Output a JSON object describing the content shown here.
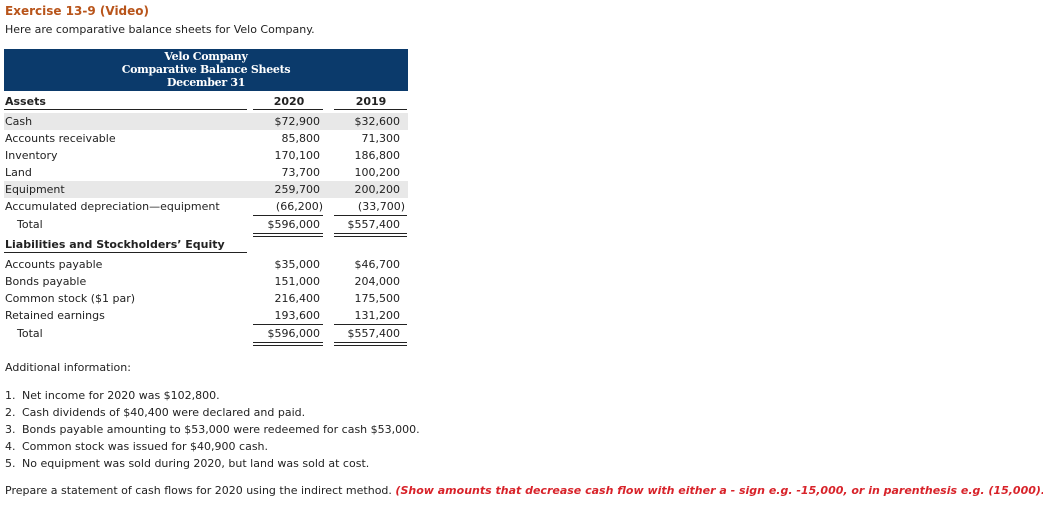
{
  "exercise_title": "Exercise 13-9 (Video)",
  "intro": "Here are comparative balance sheets for Velo Company.",
  "balance_sheet": {
    "header": {
      "company": "Velo Company",
      "statement": "Comparative Balance Sheets",
      "date": "December 31"
    },
    "assets_heading": "Assets",
    "years": [
      "2020",
      "2019"
    ],
    "assets": [
      {
        "label": "Cash",
        "y2020": "$72,900",
        "y2019": "$32,600"
      },
      {
        "label": "Accounts receivable",
        "y2020": "85,800",
        "y2019": "71,300"
      },
      {
        "label": "Inventory",
        "y2020": "170,100",
        "y2019": "186,800"
      },
      {
        "label": "Land",
        "y2020": "73,700",
        "y2019": "100,200"
      },
      {
        "label": "Equipment",
        "y2020": "259,700",
        "y2019": "200,200"
      },
      {
        "label": "Accumulated depreciation—equipment",
        "y2020": "(66,200)",
        "y2019": "(33,700)"
      }
    ],
    "assets_total": {
      "label": "Total",
      "y2020": "$596,000",
      "y2019": "$557,400"
    },
    "liabilities_heading": "Liabilities and Stockholders’ Equity",
    "liabilities": [
      {
        "label": "Accounts payable",
        "y2020": "$35,000",
        "y2019": "$46,700"
      },
      {
        "label": "Bonds payable",
        "y2020": "151,000",
        "y2019": "204,000"
      },
      {
        "label": "Common stock ($1 par)",
        "y2020": "216,400",
        "y2019": "175,500"
      },
      {
        "label": "Retained earnings",
        "y2020": "193,600",
        "y2019": "131,200"
      }
    ],
    "liabilities_total": {
      "label": "Total",
      "y2020": "$596,000",
      "y2019": "$557,400"
    }
  },
  "additional_info_heading": "Additional information:",
  "additional_info": [
    {
      "num": "1.",
      "text": "Net income for 2020 was $102,800."
    },
    {
      "num": "2.",
      "text": "Cash dividends of $40,400 were declared and paid."
    },
    {
      "num": "3.",
      "text": "Bonds payable amounting to $53,000 were redeemed for cash $53,000."
    },
    {
      "num": "4.",
      "text": "Common stock was issued for $40,900 cash."
    },
    {
      "num": "5.",
      "text": "No equipment was sold during 2020, but land was sold at cost."
    }
  ],
  "instruction": {
    "text": "Prepare a statement of cash flows for 2020 using the indirect method.",
    "note": "(Show amounts that decrease cash flow with either a - sign e.g. -15,000, or in parenthesis e.g. (15,000).)"
  }
}
